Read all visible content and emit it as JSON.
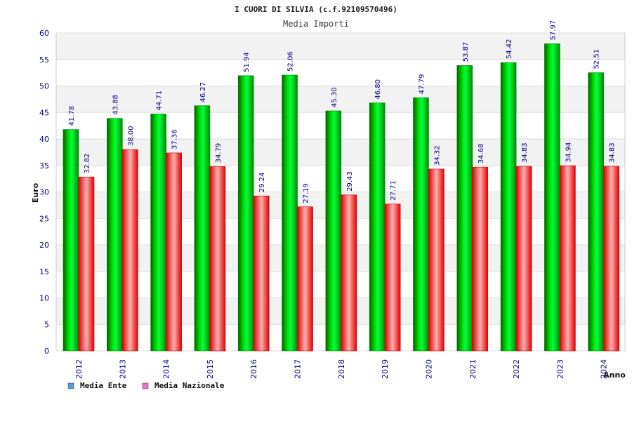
{
  "chart_data": {
    "type": "bar",
    "title": "I CUORI DI SILVIA (c.f.92109570496)",
    "subtitle": "Media Importi",
    "xlabel": "Anno",
    "ylabel": "Euro",
    "ylim": [
      0,
      60
    ],
    "yticks": [
      "0",
      "5",
      "10",
      "15",
      "20",
      "25",
      "30",
      "35",
      "40",
      "45",
      "50",
      "55",
      "60"
    ],
    "categories": [
      "2012",
      "2013",
      "2014",
      "2015",
      "2016",
      "2017",
      "2018",
      "2019",
      "2020",
      "2021",
      "2022",
      "2023",
      "2024"
    ],
    "series": [
      {
        "name": "Media Ente",
        "color": "#00cc00",
        "legend_color": "#5b9bd5",
        "values": [
          41.78,
          43.88,
          44.71,
          46.27,
          51.94,
          52.06,
          45.3,
          46.8,
          47.79,
          53.87,
          54.42,
          57.97,
          52.51
        ],
        "labels": [
          "41.78",
          "43.88",
          "44.71",
          "46.27",
          "51.94",
          "52.06",
          "45.30",
          "46.80",
          "47.79",
          "53.87",
          "54.42",
          "57.97",
          "52.51"
        ]
      },
      {
        "name": "Media Nazionale",
        "color": "#ff2020",
        "legend_color": "#e377c2",
        "values": [
          32.82,
          38.0,
          37.36,
          34.79,
          29.24,
          27.19,
          29.43,
          27.71,
          34.32,
          34.68,
          34.83,
          34.94,
          34.83
        ],
        "labels": [
          "32.82",
          "38.00",
          "37.36",
          "34.79",
          "29.24",
          "27.19",
          "29.43",
          "27.71",
          "34.32",
          "34.68",
          "34.83",
          "34.94",
          "34.83"
        ]
      }
    ],
    "grid": true,
    "legend": "bottom-left"
  }
}
